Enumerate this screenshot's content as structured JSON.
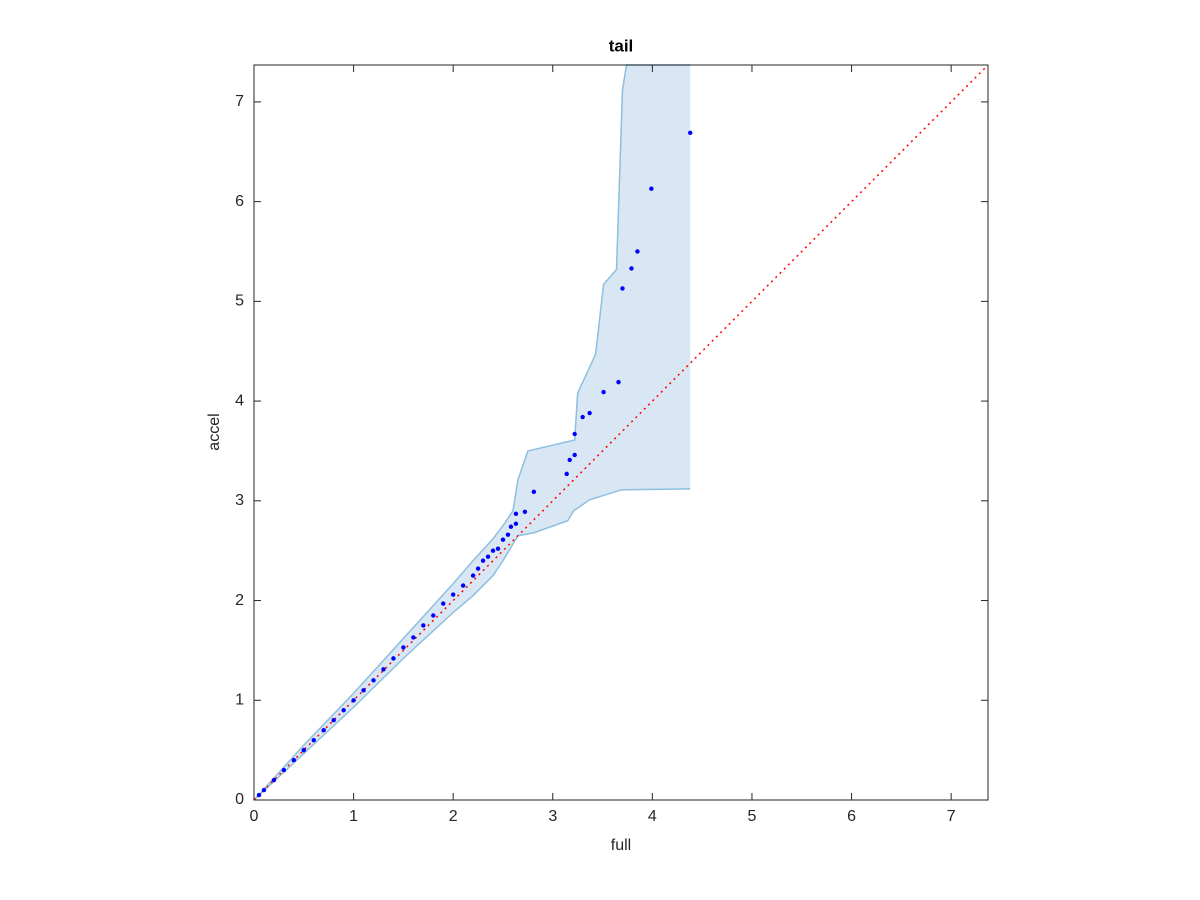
{
  "chart_data": {
    "type": "scatter",
    "title": "tail",
    "x_label": "full",
    "y_label": "accel",
    "xlim": [
      0,
      7.37
    ],
    "ylim": [
      0,
      7.37
    ],
    "xticks": [
      0,
      1,
      2,
      3,
      4,
      5,
      6,
      7
    ],
    "yticks": [
      0,
      1,
      2,
      3,
      4,
      5,
      6,
      7
    ],
    "grid": false,
    "box": true,
    "scatter": {
      "color": "#0000ff",
      "x": [
        0.05,
        0.1,
        0.2,
        0.3,
        0.4,
        0.5,
        0.6,
        0.7,
        0.8,
        0.9,
        1.0,
        1.1,
        1.2,
        1.3,
        1.4,
        1.5,
        1.6,
        1.7,
        1.8,
        1.9,
        2.0,
        2.1,
        2.2,
        2.25,
        2.3,
        2.35,
        2.4,
        2.45,
        2.5,
        2.55,
        2.58,
        2.63,
        2.63,
        2.72,
        2.81,
        3.14,
        3.17,
        3.22,
        3.22,
        3.3,
        3.37,
        3.51,
        3.66,
        3.7,
        3.79,
        3.85,
        3.99,
        4.38
      ],
      "y": [
        0.05,
        0.1,
        0.2,
        0.3,
        0.4,
        0.5,
        0.6,
        0.7,
        0.8,
        0.9,
        1.0,
        1.1,
        1.2,
        1.31,
        1.42,
        1.53,
        1.63,
        1.75,
        1.85,
        1.97,
        2.06,
        2.15,
        2.25,
        2.32,
        2.4,
        2.44,
        2.5,
        2.52,
        2.61,
        2.66,
        2.74,
        2.77,
        2.87,
        2.89,
        3.09,
        3.27,
        3.41,
        3.46,
        3.67,
        3.84,
        3.88,
        4.09,
        4.19,
        5.13,
        5.33,
        5.5,
        6.13,
        6.69
      ]
    },
    "band": {
      "color": "#d8e7f3",
      "edge_color": "#8dbfe0",
      "upper": {
        "x": [
          0,
          0.5,
          1.0,
          1.5,
          2.0,
          2.2,
          2.4,
          2.5,
          2.6,
          2.65,
          2.75,
          3.22,
          3.25,
          3.43,
          3.51,
          3.64,
          3.7,
          3.74,
          4.38
        ],
        "y": [
          0,
          0.55,
          1.07,
          1.62,
          2.17,
          2.4,
          2.62,
          2.75,
          2.9,
          3.21,
          3.5,
          3.61,
          4.08,
          4.47,
          5.17,
          5.32,
          7.12,
          7.37,
          7.37
        ]
      },
      "lower": {
        "x": [
          0,
          1.0,
          1.5,
          2.0,
          2.2,
          2.4,
          2.5,
          2.65,
          2.81,
          3.15,
          3.21,
          3.37,
          3.69,
          4.38
        ],
        "y": [
          0,
          0.93,
          1.42,
          1.88,
          2.05,
          2.25,
          2.4,
          2.65,
          2.68,
          2.8,
          2.9,
          3.01,
          3.11,
          3.12
        ]
      }
    },
    "reference_line": {
      "x": [
        0,
        7.37
      ],
      "y": [
        0,
        7.37
      ],
      "color": "#ff0000"
    }
  }
}
